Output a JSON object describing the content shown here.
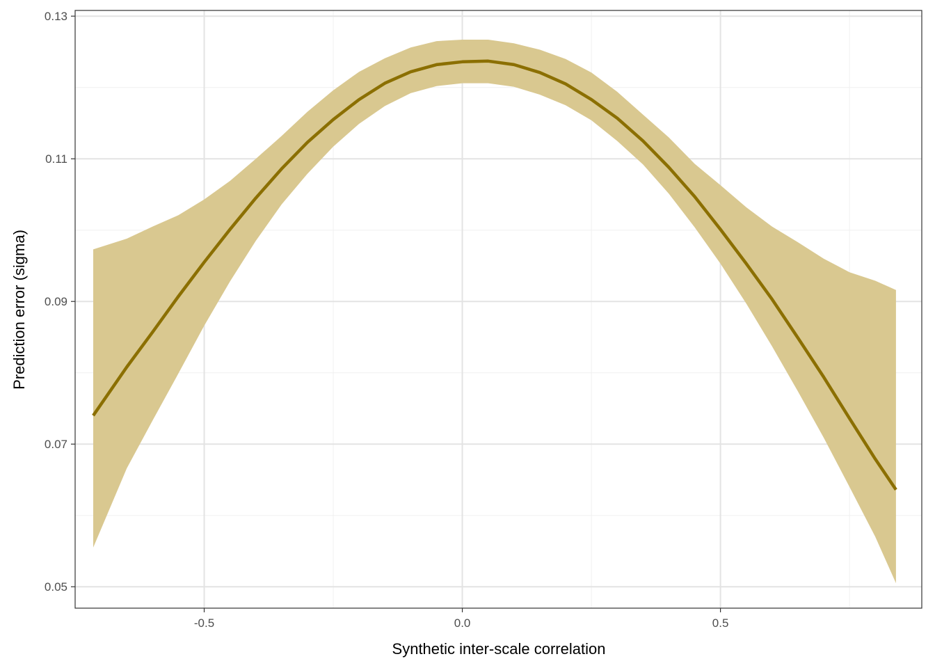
{
  "chart_data": {
    "type": "line",
    "title": "",
    "xlabel": "Synthetic inter-scale correlation",
    "ylabel": "Prediction error (sigma)",
    "xlim": [
      -0.75,
      0.89
    ],
    "ylim": [
      0.047,
      0.1308
    ],
    "x_ticks": [
      -0.5,
      0.0,
      0.5
    ],
    "x_tick_labels": [
      "-0.5",
      "0.0",
      "0.5"
    ],
    "y_ticks": [
      0.05,
      0.07,
      0.09,
      0.11,
      0.13
    ],
    "y_tick_labels": [
      "0.05",
      "0.07",
      "0.09",
      "0.11",
      "0.13"
    ],
    "x_minor_ticks": [
      -0.75,
      -0.25,
      0.25,
      0.75
    ],
    "y_minor_ticks": [
      0.06,
      0.08,
      0.1,
      0.12
    ],
    "grid": true,
    "legend": "none",
    "colors": {
      "line": "#8B6F00",
      "ribbon": "#D9C890",
      "panel_border": "#333333",
      "grid_major": "#e3e3e3",
      "grid_minor": "#f0f0f0"
    },
    "series": [
      {
        "x": [
          -0.715,
          -0.65,
          -0.6,
          -0.55,
          -0.5,
          -0.45,
          -0.4,
          -0.35,
          -0.3,
          -0.25,
          -0.2,
          -0.15,
          -0.1,
          -0.05,
          0.0,
          0.05,
          0.1,
          0.15,
          0.2,
          0.25,
          0.3,
          0.35,
          0.4,
          0.45,
          0.5,
          0.55,
          0.6,
          0.65,
          0.7,
          0.75,
          0.8,
          0.84
        ],
        "y": [
          0.074,
          0.0808,
          0.0857,
          0.0907,
          0.0955,
          0.1001,
          0.1045,
          0.1086,
          0.1123,
          0.1155,
          0.1183,
          0.1206,
          0.1222,
          0.1232,
          0.1236,
          0.1237,
          0.1232,
          0.1221,
          0.1205,
          0.1183,
          0.1157,
          0.1125,
          0.1088,
          0.1047,
          0.1001,
          0.0953,
          0.0903,
          0.0849,
          0.0794,
          0.0736,
          0.0679,
          0.0636
        ],
        "lower": [
          0.0555,
          0.0666,
          0.0733,
          0.0799,
          0.0866,
          0.0928,
          0.0985,
          0.1036,
          0.1079,
          0.1117,
          0.1149,
          0.1174,
          0.1192,
          0.1202,
          0.1206,
          0.1206,
          0.1201,
          0.119,
          0.1175,
          0.1154,
          0.1125,
          0.1092,
          0.1051,
          0.1004,
          0.0953,
          0.0897,
          0.0837,
          0.0774,
          0.0709,
          0.064,
          0.057,
          0.0505
        ],
        "upper": [
          0.0973,
          0.0988,
          0.1005,
          0.1021,
          0.1043,
          0.1069,
          0.11,
          0.1132,
          0.1166,
          0.1196,
          0.1222,
          0.1241,
          0.1256,
          0.1265,
          0.1267,
          0.1267,
          0.1262,
          0.1253,
          0.124,
          0.1221,
          0.1194,
          0.1162,
          0.113,
          0.1093,
          0.1063,
          0.1032,
          0.1005,
          0.0983,
          0.096,
          0.0941,
          0.0929,
          0.0916
        ]
      }
    ]
  }
}
